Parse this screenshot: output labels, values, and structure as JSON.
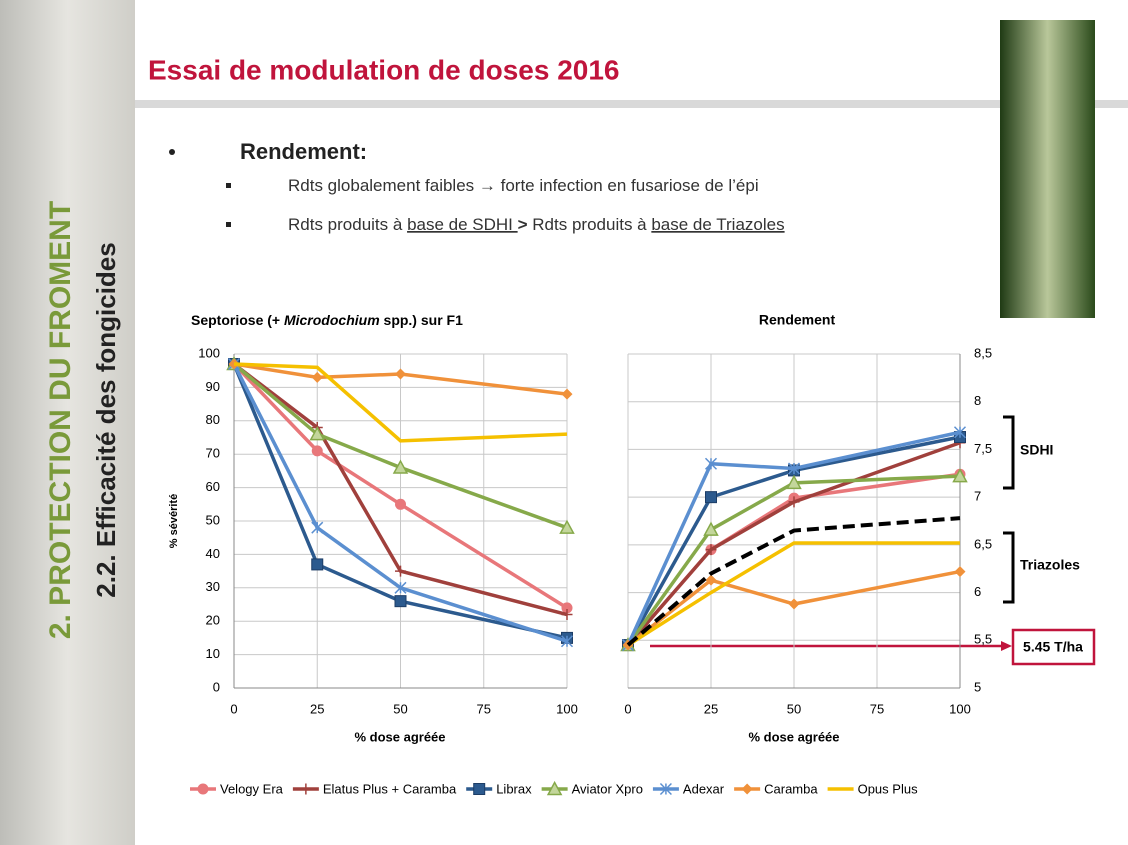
{
  "slide": {
    "title": "Essai de modulation de doses 2016",
    "side_title": "2. PROTECTION DU FROMENT",
    "side_subtitle": "2.2. Efficacité des fongicides",
    "bullet": "Rendement:",
    "sub_bullets": [
      [
        "Rdts globalement faibles → forte infection en fusariose de l’épi"
      ],
      [
        "Rdts produits à ",
        "base de SDHI ",
        "> ",
        "Rdts produits à ",
        "base de Triazoles"
      ]
    ]
  },
  "chart_data": [
    {
      "type": "line",
      "title_parts": [
        "Septoriose (+ ",
        "Microdochium",
        " spp.) sur F1"
      ],
      "xlabel": "% dose agréée",
      "ylabel": "% sévérité",
      "x": [
        0,
        25,
        50,
        100
      ],
      "xlim": [
        0,
        100
      ],
      "xticks": [
        0,
        25,
        50,
        75,
        100
      ],
      "ylim": [
        0,
        100
      ],
      "yticks": [
        0,
        10,
        20,
        30,
        40,
        50,
        60,
        70,
        80,
        90,
        100
      ],
      "grid": true,
      "series": [
        {
          "name": "Velogy Era",
          "color": "#e8777a",
          "marker": "circle",
          "values": [
            97,
            71,
            55,
            24
          ]
        },
        {
          "name": "Elatus Plus + Caramba",
          "color": "#a0403c",
          "marker": "plus",
          "values": [
            97,
            78,
            35,
            22
          ]
        },
        {
          "name": "Librax",
          "color": "#2c5a8e",
          "marker": "square",
          "values": [
            97,
            37,
            26,
            15
          ]
        },
        {
          "name": "Aviator Xpro",
          "color": "#86a94a",
          "marker": "triangle",
          "values": [
            97,
            76,
            66,
            48
          ]
        },
        {
          "name": "Adexar",
          "color": "#5b8fd0",
          "marker": "star",
          "values": [
            97,
            48,
            30,
            14
          ]
        },
        {
          "name": "Caramba",
          "color": "#f0913a",
          "marker": "diamond",
          "values": [
            97,
            93,
            94,
            88
          ]
        },
        {
          "name": "Opus Plus",
          "color": "#f5c000",
          "marker": "none",
          "values": [
            97,
            96,
            74,
            76
          ]
        }
      ]
    },
    {
      "type": "line",
      "title": "Rendement",
      "xlabel": "% dose agréée",
      "x": [
        0,
        25,
        50,
        100
      ],
      "xlim": [
        0,
        100
      ],
      "xticks": [
        0,
        25,
        50,
        75,
        100
      ],
      "ylim": [
        5,
        8.5
      ],
      "yticks": [
        5,
        {
          "value": 5.5,
          "label": "5,5"
        },
        6,
        {
          "value": 6.5,
          "label": "6,5"
        },
        7,
        {
          "value": 7.5,
          "label": "7,5"
        },
        8,
        {
          "value": 8.5,
          "label": "8,5"
        }
      ],
      "grid": true,
      "annotations": [
        "SDHI",
        "Triazoles",
        "5.45 T/ha"
      ],
      "series": [
        {
          "color": "#e8777a",
          "marker": "circle",
          "values": [
            5.45,
            6.45,
            6.99,
            7.24
          ]
        },
        {
          "color": "#a0403c",
          "marker": "plus",
          "values": [
            5.45,
            6.45,
            6.95,
            7.57
          ]
        },
        {
          "color": "#2c5a8e",
          "marker": "square",
          "values": [
            5.45,
            7.0,
            7.28,
            7.63
          ]
        },
        {
          "color": "#86a94a",
          "marker": "triangle",
          "values": [
            5.45,
            6.66,
            7.15,
            7.22
          ]
        },
        {
          "color": "#5b8fd0",
          "marker": "star",
          "values": [
            5.45,
            7.35,
            7.3,
            7.68
          ]
        },
        {
          "color": "#f0913a",
          "marker": "diamond",
          "values": [
            5.45,
            6.13,
            5.88,
            6.22
          ]
        },
        {
          "color": "#f5c000",
          "marker": "none",
          "values": [
            5.45,
            6.0,
            6.52,
            6.52
          ]
        },
        {
          "color": "#000000",
          "marker": "none",
          "dash": true,
          "values": [
            5.45,
            6.2,
            6.65,
            6.78
          ]
        }
      ]
    }
  ]
}
